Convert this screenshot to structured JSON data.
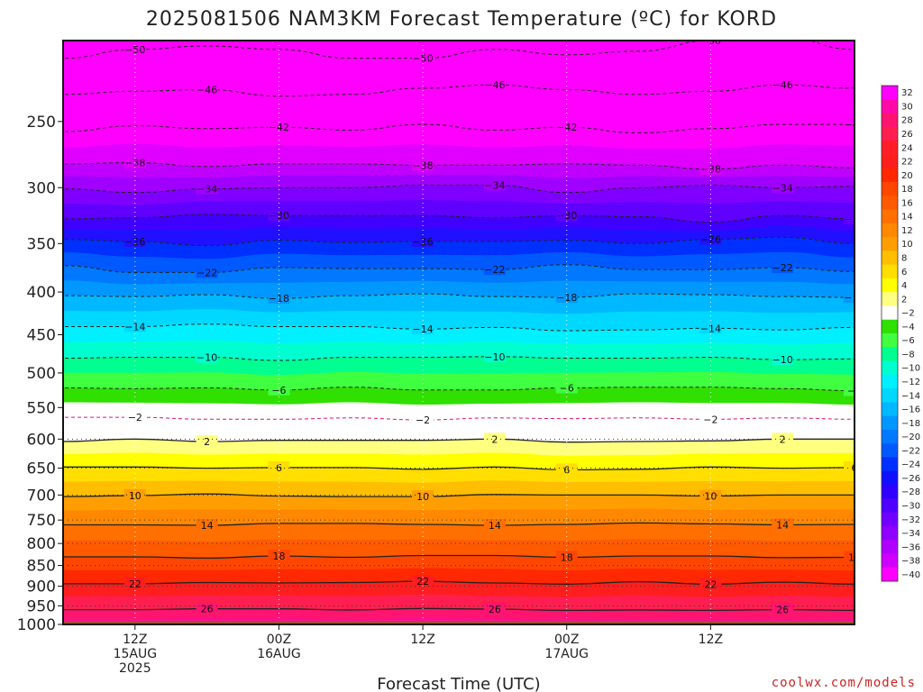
{
  "chart_data": {
    "type": "heatmap",
    "title": "2025081506 NAM3KM Forecast Temperature (ºC) for KORD",
    "xlabel": "Forecast Time (UTC)",
    "ylabel": "",
    "y_scale": "log",
    "y_reversed": true,
    "ylim": [
      1000,
      200
    ],
    "xlim": [
      "2025-08-15 06Z",
      "2025-08-18 00Z"
    ],
    "y_ticks": [
      250,
      300,
      350,
      400,
      450,
      500,
      550,
      600,
      650,
      700,
      750,
      800,
      850,
      900,
      950,
      1000
    ],
    "x_ticks": [
      {
        "x": "2025-08-15 12Z",
        "lines": [
          "12Z",
          "15AUG",
          "2025"
        ]
      },
      {
        "x": "2025-08-16 00Z",
        "lines": [
          "00Z",
          "16AUG"
        ]
      },
      {
        "x": "2025-08-16 12Z",
        "lines": [
          "12Z"
        ]
      },
      {
        "x": "2025-08-17 00Z",
        "lines": [
          "00Z",
          "17AUG"
        ]
      },
      {
        "x": "2025-08-17 12Z",
        "lines": [
          "12Z"
        ]
      }
    ],
    "colorbar": {
      "levels": [
        32,
        30,
        28,
        26,
        24,
        22,
        20,
        18,
        16,
        14,
        12,
        10,
        8,
        6,
        4,
        2,
        -2,
        -4,
        -6,
        -8,
        -10,
        -12,
        -14,
        -16,
        -18,
        -20,
        -22,
        -24,
        -26,
        -28,
        -30,
        -32,
        -34,
        -36,
        -38,
        -40
      ],
      "colors": [
        "#ff00ff",
        "#ff0aaa",
        "#ff1470",
        "#ff1e50",
        "#ff1e28",
        "#ff1e1e",
        "#ff2800",
        "#ff4600",
        "#ff5a00",
        "#ff7000",
        "#ff8800",
        "#ff9e00",
        "#ffbe00",
        "#ffde00",
        "#ffff00",
        "#ffff80",
        "#ffffff",
        "#30e000",
        "#40ff40",
        "#00ff90",
        "#00ffd0",
        "#00f0ff",
        "#00d8ff",
        "#00b8ff",
        "#0098ff",
        "#0078ff",
        "#0058ff",
        "#0030ff",
        "#1010ff",
        "#3000ff",
        "#5000ff",
        "#7000ff",
        "#9000ff",
        "#b000ff",
        "#d000ff",
        "#ff00ff"
      ]
    },
    "series": [
      {
        "level": -50,
        "y": [
          210,
          205,
          203,
          205,
          210,
          210,
          205,
          208,
          206,
          200,
          198,
          205
        ]
      },
      {
        "level": -46,
        "y": [
          232,
          230,
          229,
          233,
          232,
          228,
          226,
          229,
          232,
          230,
          226,
          228
        ]
      },
      {
        "level": -42,
        "y": [
          257,
          253,
          255,
          254,
          256,
          252,
          256,
          254,
          258,
          255,
          252,
          252
        ]
      },
      {
        "level": -38,
        "y": [
          281,
          280,
          283,
          281,
          281,
          282,
          282,
          281,
          282,
          285,
          282,
          284
        ]
      },
      {
        "level": -34,
        "y": [
          301,
          304,
          301,
          300,
          300,
          298,
          298,
          304,
          300,
          298,
          300,
          299
        ]
      },
      {
        "level": -30,
        "y": [
          327,
          326,
          323,
          324,
          324,
          324,
          326,
          324,
          325,
          330,
          324,
          327
        ]
      },
      {
        "level": -26,
        "y": [
          346,
          348,
          352,
          347,
          349,
          348,
          348,
          347,
          350,
          346,
          344,
          350
        ]
      },
      {
        "level": -22,
        "y": [
          372,
          379,
          379,
          374,
          375,
          375,
          376,
          371,
          376,
          376,
          374,
          378
        ]
      },
      {
        "level": -18,
        "y": [
          404,
          405,
          403,
          407,
          404,
          402,
          405,
          406,
          402,
          403,
          405,
          406
        ]
      },
      {
        "level": -14,
        "y": [
          440,
          440,
          437,
          440,
          440,
          443,
          441,
          445,
          444,
          442,
          444,
          441
        ]
      },
      {
        "level": -10,
        "y": [
          480,
          479,
          479,
          483,
          479,
          479,
          478,
          480,
          480,
          479,
          482,
          481
        ]
      },
      {
        "level": -6,
        "y": [
          521,
          522,
          521,
          524,
          520,
          524,
          524,
          521,
          520,
          520,
          522,
          525
        ]
      },
      {
        "level": -2,
        "y": [
          565,
          565,
          568,
          568,
          566,
          569,
          566,
          567,
          566,
          568,
          566,
          568
        ]
      },
      {
        "level": 2,
        "y": [
          604,
          600,
          604,
          602,
          602,
          602,
          600,
          605,
          604,
          603,
          600,
          600
        ]
      },
      {
        "level": 6,
        "y": [
          648,
          648,
          650,
          649,
          649,
          652,
          648,
          653,
          652,
          648,
          650,
          649
        ]
      },
      {
        "level": 10,
        "y": [
          703,
          701,
          698,
          702,
          703,
          703,
          699,
          700,
          700,
          702,
          700,
          700
        ]
      },
      {
        "level": 14,
        "y": [
          760,
          760,
          761,
          757,
          757,
          759,
          761,
          759,
          756,
          758,
          760,
          759
        ]
      },
      {
        "level": 18,
        "y": [
          830,
          830,
          833,
          828,
          831,
          827,
          827,
          831,
          828,
          828,
          832,
          831
        ]
      },
      {
        "level": 22,
        "y": [
          894,
          894,
          891,
          892,
          891,
          888,
          892,
          895,
          889,
          895,
          890,
          895
        ]
      },
      {
        "level": 26,
        "y": [
          960,
          960,
          958,
          958,
          961,
          957,
          959,
          962,
          961,
          962,
          960,
          962
        ]
      }
    ],
    "contour_times": [
      "15AUG 06Z",
      "15AUG 12Z",
      "15AUG 18Z",
      "16AUG 00Z",
      "16AUG 06Z",
      "16AUG 12Z",
      "16AUG 18Z",
      "17AUG 00Z",
      "17AUG 06Z",
      "17AUG 12Z",
      "17AUG 18Z",
      "18AUG 00Z"
    ]
  },
  "credit": "coolwx.com/models"
}
